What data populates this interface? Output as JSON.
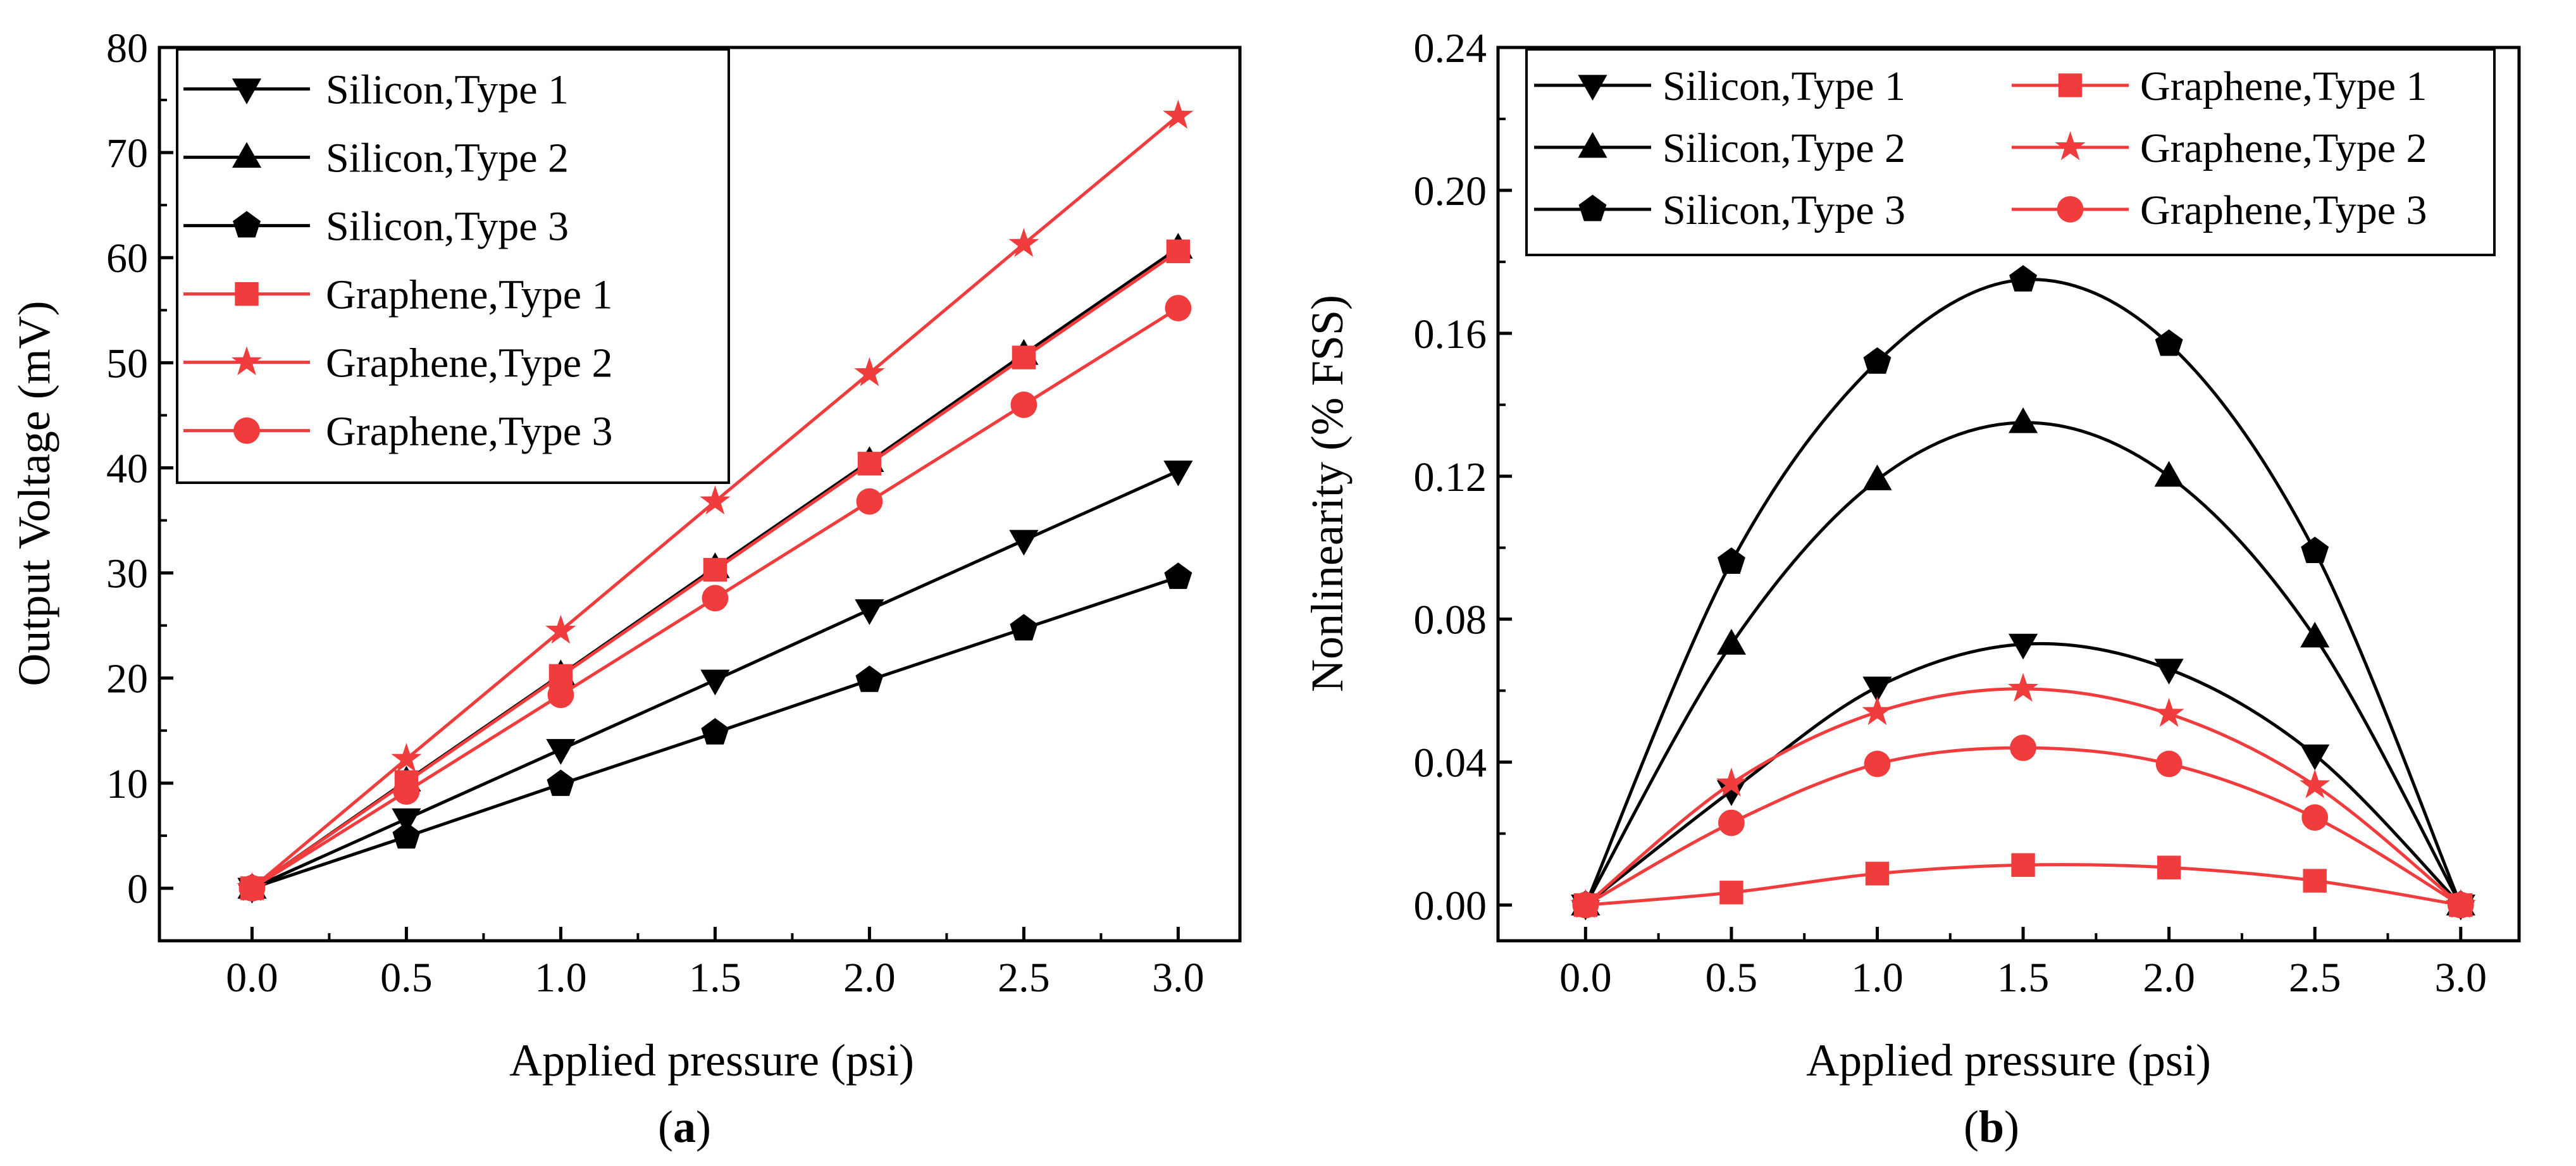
{
  "colors": {
    "black": "#000000",
    "red": "#f03c3c"
  },
  "chart_data": [
    {
      "panel": "a",
      "panel_label_open": "(",
      "panel_label_letter": "a",
      "panel_label_close": ")",
      "type": "line",
      "title": "",
      "xlabel": "Applied pressure (psi)",
      "ylabel": "Output Voltage (mV)",
      "xlim": [
        -0.3,
        3.2
      ],
      "ylim": [
        -5,
        80
      ],
      "xticks": [
        0.0,
        0.5,
        1.0,
        1.5,
        2.0,
        2.5,
        3.0
      ],
      "xtick_labels": [
        "0.0",
        "0.5",
        "1.0",
        "1.5",
        "2.0",
        "2.5",
        "3.0"
      ],
      "yticks": [
        0,
        10,
        20,
        30,
        40,
        50,
        60,
        70,
        80
      ],
      "ytick_labels": [
        "0",
        "10",
        "20",
        "30",
        "40",
        "50",
        "60",
        "70",
        "80"
      ],
      "legend_position": "top-left",
      "legend_columns": 1,
      "x": [
        0.0,
        0.5,
        1.0,
        1.5,
        2.0,
        2.5,
        3.0
      ],
      "series": [
        {
          "name": "Silicon,Type 1",
          "color": "black",
          "marker": "triangle-down",
          "values": [
            0,
            6.6,
            13.2,
            19.8,
            26.5,
            33.1,
            39.7
          ]
        },
        {
          "name": "Silicon,Type 2",
          "color": "black",
          "marker": "triangle-up",
          "values": [
            0,
            10.2,
            20.3,
            30.5,
            40.6,
            50.8,
            60.9
          ]
        },
        {
          "name": "Silicon,Type 3",
          "color": "black",
          "marker": "pentagon",
          "values": [
            0,
            4.9,
            9.9,
            14.8,
            19.8,
            24.7,
            29.6
          ]
        },
        {
          "name": "Graphene,Type 1",
          "color": "red",
          "marker": "square",
          "values": [
            0,
            10.1,
            20.2,
            30.3,
            40.4,
            50.5,
            60.6
          ]
        },
        {
          "name": "Graphene,Type 2",
          "color": "red",
          "marker": "star",
          "values": [
            0,
            12.3,
            24.5,
            36.8,
            49.0,
            61.3,
            73.5
          ]
        },
        {
          "name": "Graphene,Type 3",
          "color": "red",
          "marker": "circle",
          "values": [
            0,
            9.2,
            18.4,
            27.6,
            36.8,
            46.0,
            55.2
          ]
        }
      ]
    },
    {
      "panel": "b",
      "panel_label_open": "(",
      "panel_label_letter": "b",
      "panel_label_close": ")",
      "type": "line",
      "title": "",
      "xlabel": "Applied pressure (psi)",
      "ylabel": "Nonlinearity (% FSS)",
      "xlim": [
        -0.3,
        3.2
      ],
      "ylim": [
        -0.01,
        0.24
      ],
      "xticks": [
        0.0,
        0.5,
        1.0,
        1.5,
        2.0,
        2.5,
        3.0
      ],
      "xtick_labels": [
        "0.0",
        "0.5",
        "1.0",
        "1.5",
        "2.0",
        "2.5",
        "3.0"
      ],
      "yticks": [
        0.0,
        0.04,
        0.08,
        0.12,
        0.16,
        0.2,
        0.24
      ],
      "ytick_labels": [
        "0.00",
        "0.04",
        "0.08",
        "0.12",
        "0.16",
        "0.20",
        "0.24"
      ],
      "legend_position": "top",
      "legend_columns": 2,
      "x": [
        0.0,
        0.5,
        1.0,
        1.5,
        2.0,
        2.5,
        3.0
      ],
      "series": [
        {
          "name": "Silicon,Type 1",
          "color": "black",
          "marker": "triangle-down",
          "values": [
            0,
            0.032,
            0.061,
            0.073,
            0.066,
            0.042,
            0
          ]
        },
        {
          "name": "Silicon,Type 2",
          "color": "black",
          "marker": "triangle-up",
          "values": [
            0,
            0.073,
            0.119,
            0.135,
            0.12,
            0.075,
            0
          ]
        },
        {
          "name": "Silicon,Type 3",
          "color": "black",
          "marker": "pentagon",
          "values": [
            0,
            0.096,
            0.152,
            0.175,
            0.157,
            0.099,
            0
          ]
        },
        {
          "name": "Graphene,Type 1",
          "color": "red",
          "marker": "square",
          "values": [
            0,
            0.0035,
            0.0088,
            0.0112,
            0.0105,
            0.0068,
            0
          ]
        },
        {
          "name": "Graphene,Type 2",
          "color": "red",
          "marker": "star",
          "values": [
            0,
            0.034,
            0.054,
            0.0605,
            0.0535,
            0.0335,
            0
          ]
        },
        {
          "name": "Graphene,Type 3",
          "color": "red",
          "marker": "circle",
          "values": [
            0,
            0.023,
            0.0395,
            0.044,
            0.0395,
            0.0245,
            0
          ]
        }
      ]
    }
  ]
}
